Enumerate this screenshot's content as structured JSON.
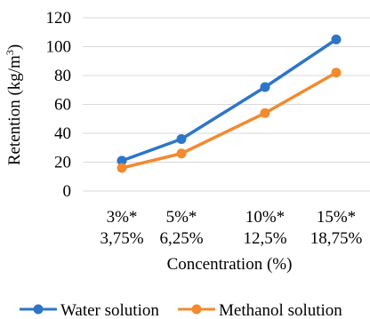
{
  "chart_data": {
    "type": "line",
    "categories": [
      [
        "3%*",
        "3,75%"
      ],
      [
        "5%*",
        "6,25%"
      ],
      [
        "10%*",
        "12,5%"
      ],
      [
        "15%*",
        "18,75%"
      ]
    ],
    "series": [
      {
        "name": "Water solution",
        "color": "#2e75c7",
        "values": [
          21,
          36,
          72,
          105
        ]
      },
      {
        "name": "Methanol solution",
        "color": "#f28a30",
        "values": [
          16,
          26,
          54,
          82
        ]
      }
    ],
    "yticks": [
      "0",
      "20",
      "40",
      "60",
      "80",
      "100",
      "120"
    ],
    "ylim": [
      0,
      120
    ],
    "ylabel": "Retention (kg/m",
    "ylabel_sup": "3",
    "ylabel_close": ")",
    "xlabel": "Concentration (%)",
    "grid": true,
    "legend_position": "bottom"
  }
}
